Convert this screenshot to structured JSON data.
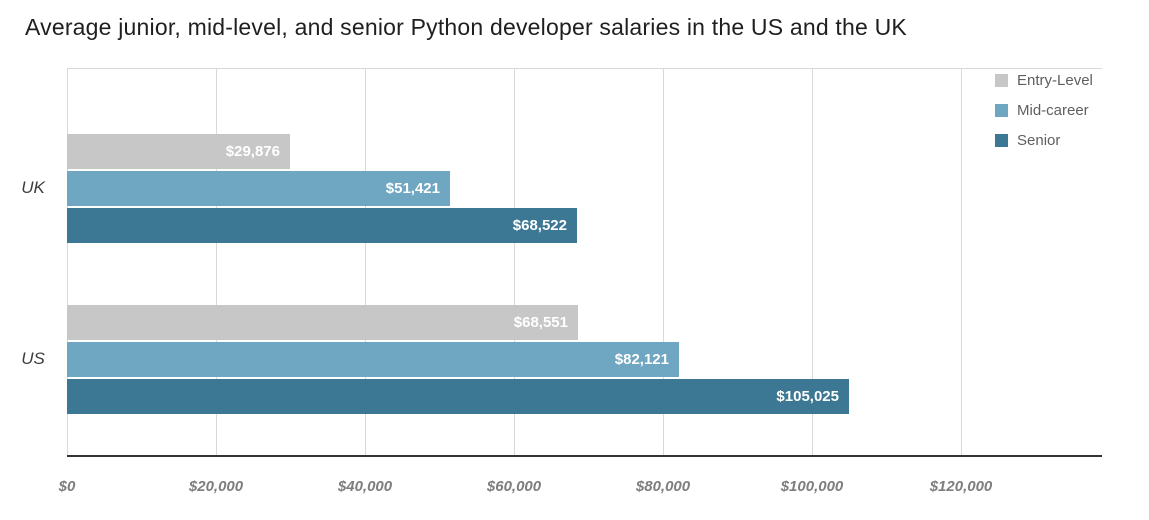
{
  "chart_data": {
    "type": "bar",
    "orientation": "horizontal",
    "title": "Average junior, mid-level, and senior Python developer salaries in the US and the UK",
    "categories": [
      "UK",
      "US"
    ],
    "series": [
      {
        "name": "Entry-Level",
        "color": "#c7c7c7",
        "values": [
          29876,
          68551
        ],
        "labels": [
          "$29,876",
          "$68,551"
        ]
      },
      {
        "name": "Mid-career",
        "color": "#6fa6c2",
        "values": [
          51421,
          82121
        ],
        "labels": [
          "$51,421",
          "$82,121"
        ]
      },
      {
        "name": "Senior",
        "color": "#3c7893",
        "values": [
          68522,
          105025
        ],
        "labels": [
          "$68,522",
          "$105,025"
        ]
      }
    ],
    "x_axis": {
      "tick_labels": [
        "$0",
        "$20,000",
        "$40,000",
        "$60,000",
        "$80,000",
        "$100,000",
        "$120,000"
      ],
      "tick_values": [
        0,
        20000,
        40000,
        60000,
        80000,
        100000,
        120000
      ],
      "max": 120000
    },
    "ylabel": "",
    "xlabel": "",
    "grid": true,
    "legend_position": "top-right",
    "colors": {
      "grid": "#d9d9d9",
      "axis": "#333333",
      "bar_value_label": "#ffffff"
    }
  }
}
